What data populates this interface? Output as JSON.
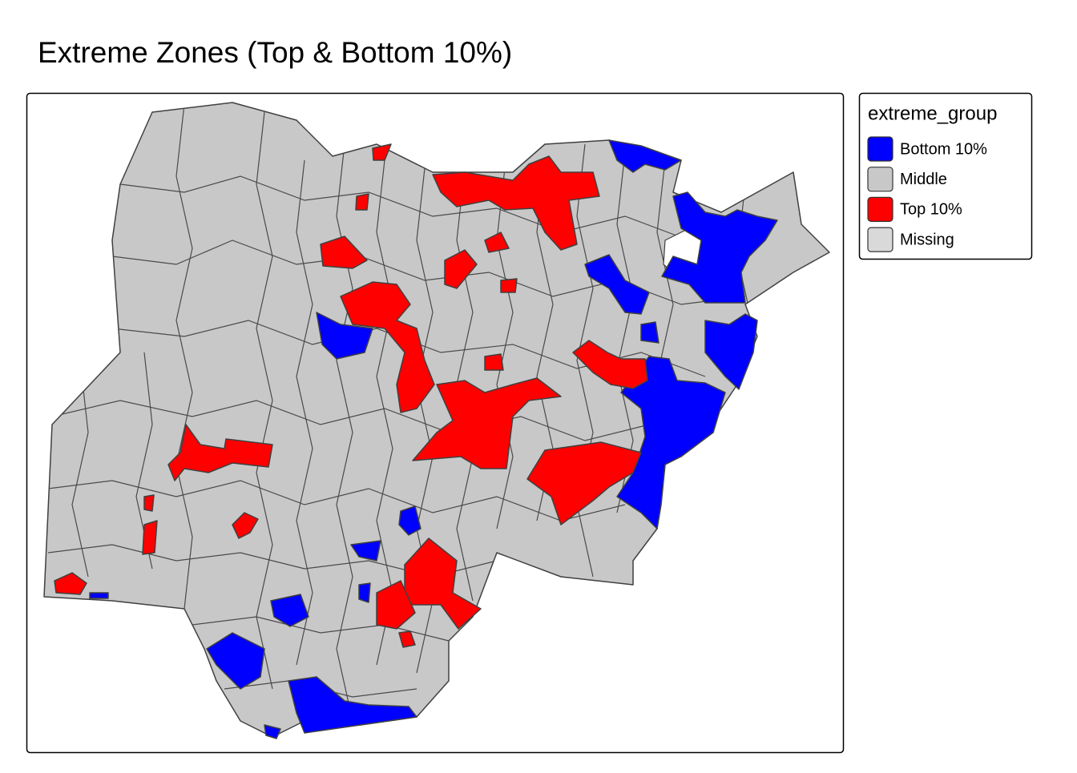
{
  "title": "Extreme Zones (Top & Bottom 10%)",
  "legend": {
    "title": "extreme_group",
    "items": [
      {
        "label": "Bottom 10%",
        "color": "#0000ff"
      },
      {
        "label": "Middle",
        "color": "#c8c8c8"
      },
      {
        "label": "Top 10%",
        "color": "#ff0000"
      },
      {
        "label": "Missing",
        "color": "#d9d9d9"
      }
    ]
  }
}
